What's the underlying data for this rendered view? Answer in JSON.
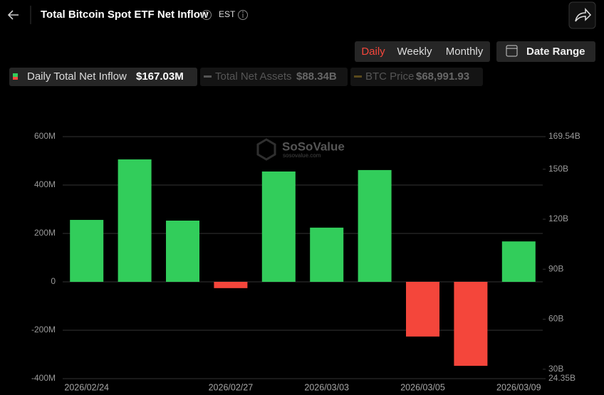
{
  "header": {
    "title": "Total Bitcoin Spot ETF Net Inflow",
    "timezone": "EST"
  },
  "controls": {
    "periods": [
      "Daily",
      "Weekly",
      "Monthly"
    ],
    "active_period": "Daily",
    "date_range": "Date Range"
  },
  "legend": [
    {
      "name": "Daily Total Net Inflow",
      "value": "$167.03M"
    },
    {
      "name": "Total Net Assets",
      "value": "$88.34B"
    },
    {
      "name": "BTC Price",
      "value": "$68,991.93"
    }
  ],
  "watermark": {
    "name": "SoSoValue",
    "url": "sosovalue.com"
  },
  "chart_data": {
    "type": "bar",
    "categories": [
      "2026/02/24",
      null,
      null,
      "2026/02/27",
      null,
      "2026/03/03",
      null,
      "2026/03/05",
      null,
      "2026/03/09"
    ],
    "series": [
      {
        "name": "Daily Total Net Inflow",
        "values": [
          256,
          506,
          253,
          -26,
          456,
          224,
          462,
          -226,
          -347,
          167.03
        ]
      }
    ],
    "positive_color": "#32cd5b",
    "negative_color": "#f4463b",
    "ylim": [
      -400,
      600
    ],
    "yticks": [
      {
        "value": -400,
        "label": "-400M"
      },
      {
        "value": -200,
        "label": "-200M"
      },
      0,
      {
        "value": 200,
        "label": "200M"
      },
      {
        "value": 400,
        "label": "400M"
      },
      {
        "value": 600,
        "label": "600M"
      }
    ],
    "y2lim": [
      24.35,
      169.54
    ],
    "y2ticks": [
      {
        "value": 24.35,
        "label": "24.35B"
      },
      {
        "value": 30,
        "label": "30B"
      },
      {
        "value": 60,
        "label": "60B"
      },
      {
        "value": 90,
        "label": "90B"
      },
      {
        "value": 120,
        "label": "120B"
      },
      {
        "value": 150,
        "label": "150B"
      },
      {
        "value": 169.54,
        "label": "169.54B"
      }
    ],
    "grid": true
  }
}
